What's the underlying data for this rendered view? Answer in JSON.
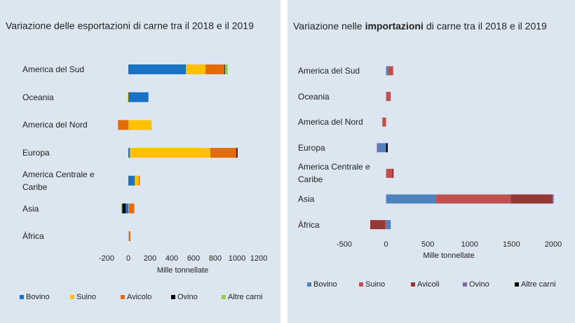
{
  "chart_data": [
    {
      "type": "bar",
      "orientation": "horizontal",
      "stacked": true,
      "title": "Variazione delle esportazioni di carne tra il 2018 e il 2019",
      "categories": [
        "America del Sud",
        "Oceania",
        "America del Nord",
        "Europa",
        "America Centrale e Caribe",
        "Asia",
        "África"
      ],
      "series": [
        {
          "name": "Bovino",
          "color": "#1a72c4",
          "values": [
            530,
            185,
            0,
            15,
            60,
            -25,
            0
          ]
        },
        {
          "name": "Suino",
          "color": "#ffc000",
          "values": [
            180,
            -5,
            215,
            740,
            35,
            5,
            5
          ]
        },
        {
          "name": "Avicolo",
          "color": "#e36c0a",
          "values": [
            175,
            0,
            -95,
            240,
            10,
            50,
            15
          ]
        },
        {
          "name": "Ovino",
          "color": "#000000",
          "values": [
            5,
            0,
            0,
            10,
            0,
            -30,
            0
          ]
        },
        {
          "name": "Altre carni",
          "color": "#92d050",
          "values": [
            25,
            0,
            0,
            0,
            0,
            -10,
            0
          ]
        }
      ],
      "xlim": [
        -200,
        1200
      ],
      "xticks": [
        -200,
        0,
        200,
        400,
        600,
        800,
        1000,
        1200
      ],
      "xlabel": "Mille tonnellate",
      "grid": false,
      "legend": "bottom"
    },
    {
      "type": "bar",
      "orientation": "horizontal",
      "stacked": true,
      "title": [
        "Variazione nelle",
        "importazioni",
        "di carne tra il 2018 e il 2019"
      ],
      "title_bold": 1,
      "categories": [
        "America del Sud",
        "Oceania",
        "America del Nord",
        "Europa",
        "America Centrale e Caribe",
        "Asia",
        "África"
      ],
      "series": [
        {
          "name": "Bovino",
          "color": "#4f81bd",
          "values": [
            25,
            0,
            0,
            -90,
            0,
            600,
            55
          ]
        },
        {
          "name": "Suino",
          "color": "#c0504d",
          "values": [
            60,
            55,
            -45,
            0,
            70,
            890,
            -10
          ]
        },
        {
          "name": "Avicoli",
          "color": "#953735",
          "values": [
            0,
            0,
            0,
            0,
            20,
            500,
            -180
          ]
        },
        {
          "name": "Ovino",
          "color": "#8064a2",
          "values": [
            0,
            0,
            0,
            -20,
            0,
            15,
            0
          ]
        },
        {
          "name": "Altre carni",
          "color": "#000000",
          "values": [
            0,
            0,
            0,
            20,
            0,
            0,
            0
          ]
        }
      ],
      "xlim": [
        -500,
        2000
      ],
      "xticks": [
        -500,
        0,
        500,
        1000,
        1500,
        2000
      ],
      "xlabel": "Mille tonnellate",
      "grid": false,
      "legend": "bottom"
    }
  ]
}
